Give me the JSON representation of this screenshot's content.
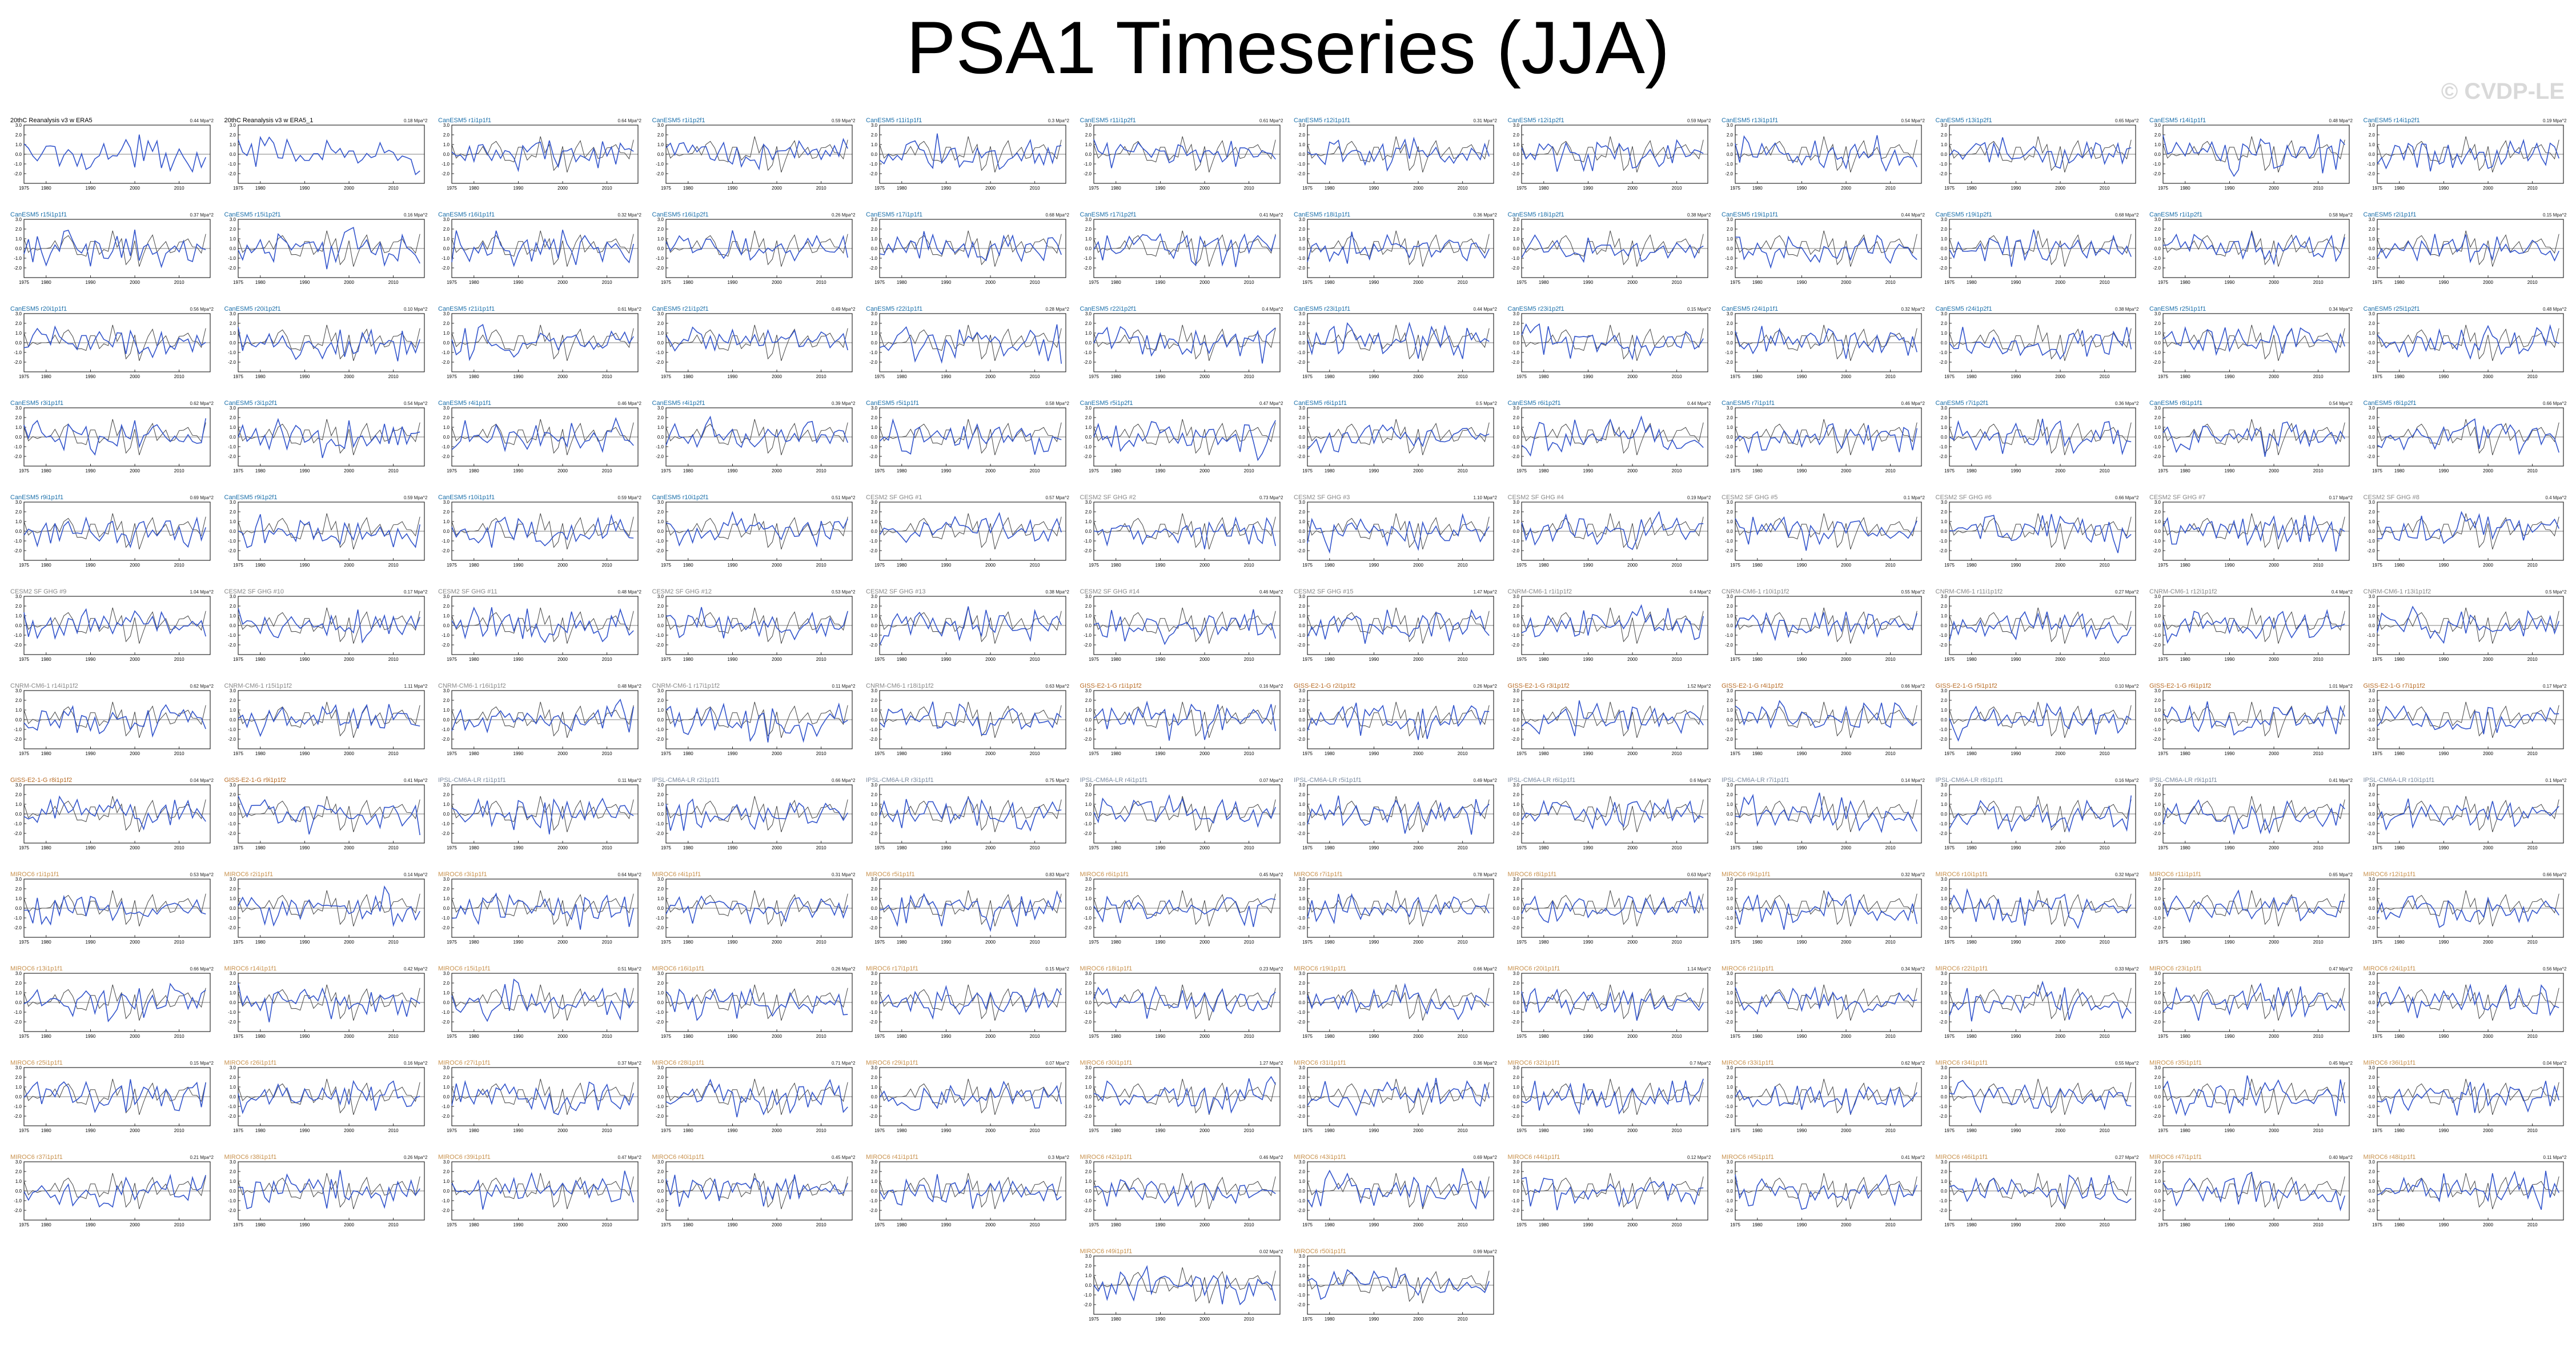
{
  "page": {
    "title": "PSA1 Timeseries (JJA)",
    "watermark": "© CVDP-LE"
  },
  "colors": {
    "model_line": "#3355cc",
    "obs_line": "#444444",
    "title_obs": "#000000",
    "title_cesm_le": "#1a6faa",
    "title_cesm_sf": "#888888",
    "title_canesm": "#888888",
    "title_gfdl": "#b86b24",
    "title_ipsl": "#7a8aa0",
    "title_miroc": "#c8914d"
  },
  "chart_data": {
    "type": "line",
    "xlim": [
      1975,
      2017
    ],
    "ylim": [
      -3,
      3
    ],
    "xticks": [
      "1975",
      "1980",
      "1990",
      "2000",
      "2010"
    ],
    "yticks": [
      "3.0",
      "2.0",
      "1.0",
      "0.0",
      "-1.0",
      "-2.0"
    ],
    "panels": [
      {
        "title": "20thC Reanalysis v3 w ERA5",
        "stat": "0.44 Mpa^2",
        "group": "obs"
      },
      {
        "title": "20thC Reanalysis v3 w ERA5_1",
        "stat": "0.18 Mpa^2",
        "group": "obs"
      },
      {
        "title": "CanESM5 r1i1p1f1",
        "stat": "0.64 Mpa^2",
        "group": "cesm_le"
      },
      {
        "title": "CanESM5 r1i1p2f1",
        "stat": "0.59 Mpa^2",
        "group": "cesm_le"
      },
      {
        "title": "CanESM5 r11i1p1f1",
        "stat": "0.3 Mpa^2",
        "group": "cesm_le"
      },
      {
        "title": "CanESM5 r11i1p2f1",
        "stat": "0.61 Mpa^2",
        "group": "cesm_le"
      },
      {
        "title": "CanESM5 r12i1p1f1",
        "stat": "0.31 Mpa^2",
        "group": "cesm_le"
      },
      {
        "title": "CanESM5 r12i1p2f1",
        "stat": "0.59 Mpa^2",
        "group": "cesm_le"
      },
      {
        "title": "CanESM5 r13i1p1f1",
        "stat": "0.54 Mpa^2",
        "group": "cesm_le"
      },
      {
        "title": "CanESM5 r13i1p2f1",
        "stat": "0.65 Mpa^2",
        "group": "cesm_le"
      },
      {
        "title": "CanESM5 r14i1p1f1",
        "stat": "0.48 Mpa^2",
        "group": "cesm_le"
      },
      {
        "title": "CanESM5 r14i1p2f1",
        "stat": "0.19 Mpa^2",
        "group": "cesm_le"
      },
      {
        "title": "CanESM5 r15i1p1f1",
        "stat": "0.37 Mpa^2",
        "group": "cesm_le"
      },
      {
        "title": "CanESM5 r15i1p2f1",
        "stat": "0.16 Mpa^2",
        "group": "cesm_le"
      },
      {
        "title": "CanESM5 r16i1p1f1",
        "stat": "0.32 Mpa^2",
        "group": "cesm_le"
      },
      {
        "title": "CanESM5 r16i1p2f1",
        "stat": "0.26 Mpa^2",
        "group": "cesm_le"
      },
      {
        "title": "CanESM5 r17i1p1f1",
        "stat": "0.68 Mpa^2",
        "group": "cesm_le"
      },
      {
        "title": "CanESM5 r17i1p2f1",
        "stat": "0.41 Mpa^2",
        "group": "cesm_le"
      },
      {
        "title": "CanESM5 r18i1p1f1",
        "stat": "0.36 Mpa^2",
        "group": "cesm_le"
      },
      {
        "title": "CanESM5 r18i1p2f1",
        "stat": "0.38 Mpa^2",
        "group": "cesm_le"
      },
      {
        "title": "CanESM5 r19i1p1f1",
        "stat": "0.44 Mpa^2",
        "group": "cesm_le"
      },
      {
        "title": "CanESM5 r19i1p2f1",
        "stat": "0.68 Mpa^2",
        "group": "cesm_le"
      },
      {
        "title": "CanESM5 r1i1p2f1",
        "stat": "0.58 Mpa^2",
        "group": "cesm_le"
      },
      {
        "title": "CanESM5 r2i1p1f1",
        "stat": "0.15 Mpa^2",
        "group": "cesm_le"
      },
      {
        "title": "CanESM5 r20i1p1f1",
        "stat": "0.56 Mpa^2",
        "group": "cesm_le"
      },
      {
        "title": "CanESM5 r20i1p2f1",
        "stat": "0.10 Mpa^2",
        "group": "cesm_le"
      },
      {
        "title": "CanESM5 r21i1p1f1",
        "stat": "0.61 Mpa^2",
        "group": "cesm_le"
      },
      {
        "title": "CanESM5 r21i1p2f1",
        "stat": "0.49 Mpa^2",
        "group": "cesm_le"
      },
      {
        "title": "CanESM5 r22i1p1f1",
        "stat": "0.28 Mpa^2",
        "group": "cesm_le"
      },
      {
        "title": "CanESM5 r22i1p2f1",
        "stat": "0.4 Mpa^2",
        "group": "cesm_le"
      },
      {
        "title": "CanESM5 r23i1p1f1",
        "stat": "0.44 Mpa^2",
        "group": "cesm_le"
      },
      {
        "title": "CanESM5 r23i1p2f1",
        "stat": "0.15 Mpa^2",
        "group": "cesm_le"
      },
      {
        "title": "CanESM5 r24i1p1f1",
        "stat": "0.32 Mpa^2",
        "group": "cesm_le"
      },
      {
        "title": "CanESM5 r24i1p2f1",
        "stat": "0.38 Mpa^2",
        "group": "cesm_le"
      },
      {
        "title": "CanESM5 r25i1p1f1",
        "stat": "0.34 Mpa^2",
        "group": "cesm_le"
      },
      {
        "title": "CanESM5 r25i1p2f1",
        "stat": "0.48 Mpa^2",
        "group": "cesm_le"
      },
      {
        "title": "CanESM5 r3i1p1f1",
        "stat": "0.62 Mpa^2",
        "group": "cesm_le"
      },
      {
        "title": "CanESM5 r3i1p2f1",
        "stat": "0.54 Mpa^2",
        "group": "cesm_le"
      },
      {
        "title": "CanESM5 r4i1p1f1",
        "stat": "0.46 Mpa^2",
        "group": "cesm_le"
      },
      {
        "title": "CanESM5 r4i1p2f1",
        "stat": "0.39 Mpa^2",
        "group": "cesm_le"
      },
      {
        "title": "CanESM5 r5i1p1f1",
        "stat": "0.58 Mpa^2",
        "group": "cesm_le"
      },
      {
        "title": "CanESM5 r5i1p2f1",
        "stat": "0.47 Mpa^2",
        "group": "cesm_le"
      },
      {
        "title": "CanESM5 r6i1p1f1",
        "stat": "0.5 Mpa^2",
        "group": "cesm_le"
      },
      {
        "title": "CanESM5 r6i1p2f1",
        "stat": "0.44 Mpa^2",
        "group": "cesm_le"
      },
      {
        "title": "CanESM5 r7i1p1f1",
        "stat": "0.46 Mpa^2",
        "group": "cesm_le"
      },
      {
        "title": "CanESM5 r7i1p2f1",
        "stat": "0.36 Mpa^2",
        "group": "cesm_le"
      },
      {
        "title": "CanESM5 r8i1p1f1",
        "stat": "0.54 Mpa^2",
        "group": "cesm_le"
      },
      {
        "title": "CanESM5 r8i1p2f1",
        "stat": "0.66 Mpa^2",
        "group": "cesm_le"
      },
      {
        "title": "CanESM5 r9i1p1f1",
        "stat": "0.69 Mpa^2",
        "group": "cesm_le"
      },
      {
        "title": "CanESM5 r9i1p2f1",
        "stat": "0.59 Mpa^2",
        "group": "cesm_le"
      },
      {
        "title": "CanESM5 r10i1p1f1",
        "stat": "0.59 Mpa^2",
        "group": "cesm_le"
      },
      {
        "title": "CanESM5 r10i1p2f1",
        "stat": "0.51 Mpa^2",
        "group": "cesm_le"
      },
      {
        "title": "CESM2 SF GHG #1",
        "stat": "0.57 Mpa^2",
        "group": "cesm_sf"
      },
      {
        "title": "CESM2 SF GHG #2",
        "stat": "0.73 Mpa^2",
        "group": "cesm_sf"
      },
      {
        "title": "CESM2 SF GHG #3",
        "stat": "1.10 Mpa^2",
        "group": "cesm_sf"
      },
      {
        "title": "CESM2 SF GHG #4",
        "stat": "0.19 Mpa^2",
        "group": "cesm_sf"
      },
      {
        "title": "CESM2 SF GHG #5",
        "stat": "0.1 Mpa^2",
        "group": "cesm_sf"
      },
      {
        "title": "CESM2 SF GHG #6",
        "stat": "0.66 Mpa^2",
        "group": "cesm_sf"
      },
      {
        "title": "CESM2 SF GHG #7",
        "stat": "0.17 Mpa^2",
        "group": "cesm_sf"
      },
      {
        "title": "CESM2 SF GHG #8",
        "stat": "0.4 Mpa^2",
        "group": "cesm_sf"
      },
      {
        "title": "CESM2 SF GHG #9",
        "stat": "1.04 Mpa^2",
        "group": "cesm_sf"
      },
      {
        "title": "CESM2 SF GHG #10",
        "stat": "0.17 Mpa^2",
        "group": "cesm_sf"
      },
      {
        "title": "CESM2 SF GHG #11",
        "stat": "0.48 Mpa^2",
        "group": "cesm_sf"
      },
      {
        "title": "CESM2 SF GHG #12",
        "stat": "0.53 Mpa^2",
        "group": "cesm_sf"
      },
      {
        "title": "CESM2 SF GHG #13",
        "stat": "0.38 Mpa^2",
        "group": "cesm_sf"
      },
      {
        "title": "CESM2 SF GHG #14",
        "stat": "0.46 Mpa^2",
        "group": "cesm_sf"
      },
      {
        "title": "CESM2 SF GHG #15",
        "stat": "1.47 Mpa^2",
        "group": "cesm_sf"
      },
      {
        "title": "CNRM-CM6-1 r1i1p1f2",
        "stat": "0.4 Mpa^2",
        "group": "canesm"
      },
      {
        "title": "CNRM-CM6-1 r10i1p1f2",
        "stat": "0.55 Mpa^2",
        "group": "canesm"
      },
      {
        "title": "CNRM-CM6-1 r11i1p1f2",
        "stat": "0.27 Mpa^2",
        "group": "canesm"
      },
      {
        "title": "CNRM-CM6-1 r12i1p1f2",
        "stat": "0.4 Mpa^2",
        "group": "canesm"
      },
      {
        "title": "CNRM-CM6-1 r13i1p1f2",
        "stat": "0.5 Mpa^2",
        "group": "canesm"
      },
      {
        "title": "CNRM-CM6-1 r14i1p1f2",
        "stat": "0.62 Mpa^2",
        "group": "canesm"
      },
      {
        "title": "CNRM-CM6-1 r15i1p1f2",
        "stat": "1.11 Mpa^2",
        "group": "canesm"
      },
      {
        "title": "CNRM-CM6-1 r16i1p1f2",
        "stat": "0.48 Mpa^2",
        "group": "canesm"
      },
      {
        "title": "CNRM-CM6-1 r17i1p1f2",
        "stat": "0.11 Mpa^2",
        "group": "canesm"
      },
      {
        "title": "CNRM-CM6-1 r18i1p1f2",
        "stat": "0.63 Mpa^2",
        "group": "canesm"
      },
      {
        "title": "GISS-E2-1-G r1i1p1f2",
        "stat": "0.16 Mpa^2",
        "group": "gfdl"
      },
      {
        "title": "GISS-E2-1-G r2i1p1f2",
        "stat": "0.26 Mpa^2",
        "group": "gfdl"
      },
      {
        "title": "GISS-E2-1-G r3i1p1f2",
        "stat": "1.52 Mpa^2",
        "group": "gfdl"
      },
      {
        "title": "GISS-E2-1-G r4i1p1f2",
        "stat": "0.66 Mpa^2",
        "group": "gfdl"
      },
      {
        "title": "GISS-E2-1-G r5i1p1f2",
        "stat": "0.10 Mpa^2",
        "group": "gfdl"
      },
      {
        "title": "GISS-E2-1-G r6i1p1f2",
        "stat": "1.01 Mpa^2",
        "group": "gfdl"
      },
      {
        "title": "GISS-E2-1-G r7i1p1f2",
        "stat": "0.17 Mpa^2",
        "group": "gfdl"
      },
      {
        "title": "GISS-E2-1-G r8i1p1f2",
        "stat": "0.04 Mpa^2",
        "group": "gfdl"
      },
      {
        "title": "GISS-E2-1-G r9i1p1f2",
        "stat": "0.41 Mpa^2",
        "group": "gfdl"
      },
      {
        "title": "IPSL-CM6A-LR r1i1p1f1",
        "stat": "0.11 Mpa^2",
        "group": "ipsl"
      },
      {
        "title": "IPSL-CM6A-LR r2i1p1f1",
        "stat": "0.66 Mpa^2",
        "group": "ipsl"
      },
      {
        "title": "IPSL-CM6A-LR r3i1p1f1",
        "stat": "0.75 Mpa^2",
        "group": "ipsl"
      },
      {
        "title": "IPSL-CM6A-LR r4i1p1f1",
        "stat": "0.07 Mpa^2",
        "group": "ipsl"
      },
      {
        "title": "IPSL-CM6A-LR r5i1p1f1",
        "stat": "0.49 Mpa^2",
        "group": "ipsl"
      },
      {
        "title": "IPSL-CM6A-LR r6i1p1f1",
        "stat": "0.6 Mpa^2",
        "group": "ipsl"
      },
      {
        "title": "IPSL-CM6A-LR r7i1p1f1",
        "stat": "0.14 Mpa^2",
        "group": "ipsl"
      },
      {
        "title": "IPSL-CM6A-LR r8i1p1f1",
        "stat": "0.16 Mpa^2",
        "group": "ipsl"
      },
      {
        "title": "IPSL-CM6A-LR r9i1p1f1",
        "stat": "0.41 Mpa^2",
        "group": "ipsl"
      },
      {
        "title": "IPSL-CM6A-LR r10i1p1f1",
        "stat": "0.1 Mpa^2",
        "group": "ipsl"
      },
      {
        "title": "MIROC6 r1i1p1f1",
        "stat": "0.53 Mpa^2",
        "group": "miroc"
      },
      {
        "title": "MIROC6 r2i1p1f1",
        "stat": "0.14 Mpa^2",
        "group": "miroc"
      },
      {
        "title": "MIROC6 r3i1p1f1",
        "stat": "0.64 Mpa^2",
        "group": "miroc"
      },
      {
        "title": "MIROC6 r4i1p1f1",
        "stat": "0.31 Mpa^2",
        "group": "miroc"
      },
      {
        "title": "MIROC6 r5i1p1f1",
        "stat": "0.83 Mpa^2",
        "group": "miroc"
      },
      {
        "title": "MIROC6 r6i1p1f1",
        "stat": "0.45 Mpa^2",
        "group": "miroc"
      },
      {
        "title": "MIROC6 r7i1p1f1",
        "stat": "0.78 Mpa^2",
        "group": "miroc"
      },
      {
        "title": "MIROC6 r8i1p1f1",
        "stat": "0.63 Mpa^2",
        "group": "miroc"
      },
      {
        "title": "MIROC6 r9i1p1f1",
        "stat": "0.32 Mpa^2",
        "group": "miroc"
      },
      {
        "title": "MIROC6 r10i1p1f1",
        "stat": "0.32 Mpa^2",
        "group": "miroc"
      },
      {
        "title": "MIROC6 r11i1p1f1",
        "stat": "0.65 Mpa^2",
        "group": "miroc"
      },
      {
        "title": "MIROC6 r12i1p1f1",
        "stat": "0.66 Mpa^2",
        "group": "miroc"
      },
      {
        "title": "MIROC6 r13i1p1f1",
        "stat": "0.66 Mpa^2",
        "group": "miroc"
      },
      {
        "title": "MIROC6 r14i1p1f1",
        "stat": "0.42 Mpa^2",
        "group": "miroc"
      },
      {
        "title": "MIROC6 r15i1p1f1",
        "stat": "0.51 Mpa^2",
        "group": "miroc"
      },
      {
        "title": "MIROC6 r16i1p1f1",
        "stat": "0.26 Mpa^2",
        "group": "miroc"
      },
      {
        "title": "MIROC6 r17i1p1f1",
        "stat": "0.15 Mpa^2",
        "group": "miroc"
      },
      {
        "title": "MIROC6 r18i1p1f1",
        "stat": "0.23 Mpa^2",
        "group": "miroc"
      },
      {
        "title": "MIROC6 r19i1p1f1",
        "stat": "0.66 Mpa^2",
        "group": "miroc"
      },
      {
        "title": "MIROC6 r20i1p1f1",
        "stat": "1.14 Mpa^2",
        "group": "miroc"
      },
      {
        "title": "MIROC6 r21i1p1f1",
        "stat": "0.34 Mpa^2",
        "group": "miroc"
      },
      {
        "title": "MIROC6 r22i1p1f1",
        "stat": "0.33 Mpa^2",
        "group": "miroc"
      },
      {
        "title": "MIROC6 r23i1p1f1",
        "stat": "0.47 Mpa^2",
        "group": "miroc"
      },
      {
        "title": "MIROC6 r24i1p1f1",
        "stat": "0.56 Mpa^2",
        "group": "miroc"
      },
      {
        "title": "MIROC6 r25i1p1f1",
        "stat": "0.15 Mpa^2",
        "group": "miroc"
      },
      {
        "title": "MIROC6 r26i1p1f1",
        "stat": "0.16 Mpa^2",
        "group": "miroc"
      },
      {
        "title": "MIROC6 r27i1p1f1",
        "stat": "0.37 Mpa^2",
        "group": "miroc"
      },
      {
        "title": "MIROC6 r28i1p1f1",
        "stat": "0.71 Mpa^2",
        "group": "miroc"
      },
      {
        "title": "MIROC6 r29i1p1f1",
        "stat": "0.07 Mpa^2",
        "group": "miroc"
      },
      {
        "title": "MIROC6 r30i1p1f1",
        "stat": "1.27 Mpa^2",
        "group": "miroc"
      },
      {
        "title": "MIROC6 r31i1p1f1",
        "stat": "0.36 Mpa^2",
        "group": "miroc"
      },
      {
        "title": "MIROC6 r32i1p1f1",
        "stat": "0.7 Mpa^2",
        "group": "miroc"
      },
      {
        "title": "MIROC6 r33i1p1f1",
        "stat": "0.62 Mpa^2",
        "group": "miroc"
      },
      {
        "title": "MIROC6 r34i1p1f1",
        "stat": "0.55 Mpa^2",
        "group": "miroc"
      },
      {
        "title": "MIROC6 r35i1p1f1",
        "stat": "0.45 Mpa^2",
        "group": "miroc"
      },
      {
        "title": "MIROC6 r36i1p1f1",
        "stat": "0.04 Mpa^2",
        "group": "miroc"
      },
      {
        "title": "MIROC6 r37i1p1f1",
        "stat": "0.21 Mpa^2",
        "group": "miroc"
      },
      {
        "title": "MIROC6 r38i1p1f1",
        "stat": "0.26 Mpa^2",
        "group": "miroc"
      },
      {
        "title": "MIROC6 r39i1p1f1",
        "stat": "0.47 Mpa^2",
        "group": "miroc"
      },
      {
        "title": "MIROC6 r40i1p1f1",
        "stat": "0.45 Mpa^2",
        "group": "miroc"
      },
      {
        "title": "MIROC6 r41i1p1f1",
        "stat": "0.3 Mpa^2",
        "group": "miroc"
      },
      {
        "title": "MIROC6 r42i1p1f1",
        "stat": "0.46 Mpa^2",
        "group": "miroc"
      },
      {
        "title": "MIROC6 r43i1p1f1",
        "stat": "0.69 Mpa^2",
        "group": "miroc"
      },
      {
        "title": "MIROC6 r44i1p1f1",
        "stat": "0.12 Mpa^2",
        "group": "miroc"
      },
      {
        "title": "MIROC6 r45i1p1f1",
        "stat": "0.41 Mpa^2",
        "group": "miroc"
      },
      {
        "title": "MIROC6 r46i1p1f1",
        "stat": "0.27 Mpa^2",
        "group": "miroc"
      },
      {
        "title": "MIROC6 r47i1p1f1",
        "stat": "0.40 Mpa^2",
        "group": "miroc"
      },
      {
        "title": "MIROC6 r48i1p1f1",
        "stat": "0.11 Mpa^2",
        "group": "miroc"
      },
      {
        "title": "MIROC6 r49i1p1f1",
        "stat": "0.02 Mpa^2",
        "group": "miroc"
      },
      {
        "title": "MIROC6 r50i1p1f1",
        "stat": "0.99 Mpa^2",
        "group": "miroc"
      }
    ]
  }
}
